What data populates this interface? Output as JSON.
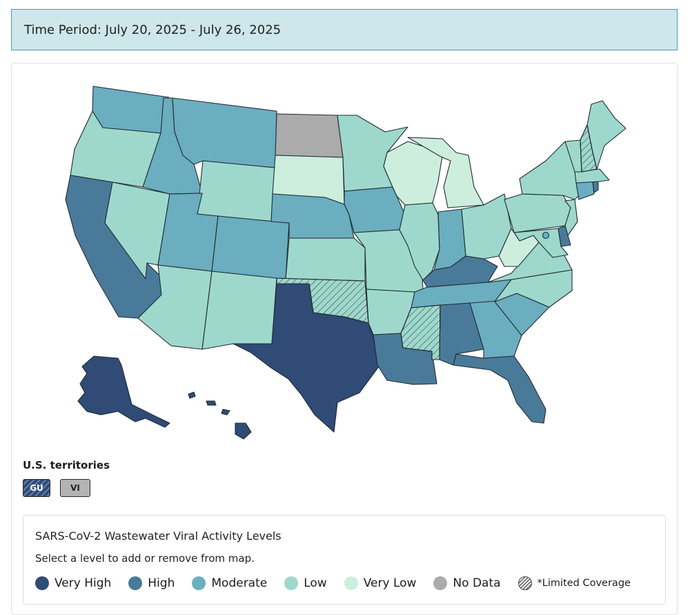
{
  "time_period": "Time Period: July 20, 2025 - July 26, 2025",
  "colors": {
    "very_high": "#2f4b76",
    "high": "#4a7a9a",
    "moderate": "#6aaec0",
    "low": "#9ed8cc",
    "very_low": "#cdeedd",
    "no_data": "#ababab"
  },
  "states": {
    "WA": "moderate",
    "OR": "low",
    "CA": "high",
    "NV": "low",
    "ID": "moderate",
    "MT": "moderate",
    "WY": "low",
    "UT": "moderate",
    "AZ": "low",
    "CO": "moderate",
    "NM": "low",
    "ND": "no_data",
    "SD": "very_low",
    "NE": "moderate",
    "KS": "low",
    "OK": "low",
    "TX": "very_high",
    "MN": "low",
    "IA": "moderate",
    "MO": "low",
    "AR": "low",
    "LA": "high",
    "WI": "very_low",
    "IL": "low",
    "MI": "very_low",
    "IN": "moderate",
    "OH": "low",
    "KY": "high",
    "TN": "moderate",
    "MS": "low",
    "AL": "high",
    "GA": "moderate",
    "FL": "high",
    "SC": "moderate",
    "NC": "low",
    "VA": "low",
    "WV": "very_low",
    "PA": "low",
    "NY": "low",
    "VT": "low",
    "NH": "low",
    "ME": "low",
    "MA": "low",
    "CT": "moderate",
    "RI": "high",
    "NJ": "low",
    "DE": "high",
    "MD": "low",
    "DC": "moderate",
    "AK": "very_high",
    "HI": "very_high"
  },
  "limited_coverage": [
    "OK",
    "MS",
    "NH"
  ],
  "territories": {
    "title": "U.S. territories",
    "items": [
      {
        "code": "GU",
        "level": "very_high",
        "limited": true
      },
      {
        "code": "VI",
        "level": "no_data",
        "limited": false
      }
    ]
  },
  "legend": {
    "title": "SARS-CoV-2 Wastewater Viral Activity Levels",
    "hint": "Select a level to add or remove from map.",
    "items": [
      {
        "label": "Very High",
        "level": "very_high"
      },
      {
        "label": "High",
        "level": "high"
      },
      {
        "label": "Moderate",
        "level": "moderate"
      },
      {
        "label": "Low",
        "level": "low"
      },
      {
        "label": "Very Low",
        "level": "very_low"
      },
      {
        "label": "No Data",
        "level": "no_data"
      },
      {
        "label": "*Limited Coverage",
        "level": "limited"
      }
    ]
  }
}
